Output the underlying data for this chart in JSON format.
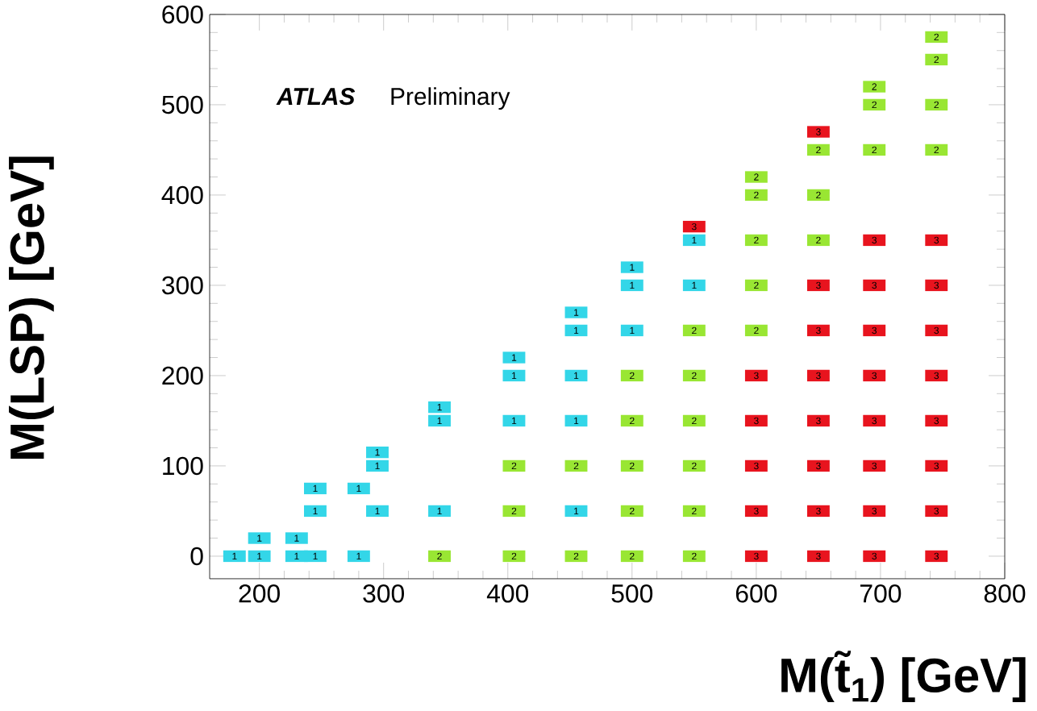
{
  "chart_data": {
    "type": "scatter",
    "xlabel": "M(t̃$_{1}$) [GeV]",
    "ylabel": "M(LSP) [GeV]",
    "annotations": [
      "ATLAS",
      "Preliminary"
    ],
    "xlim": [
      160,
      800
    ],
    "ylim": [
      -25,
      600
    ],
    "xticks": [
      200,
      300,
      400,
      500,
      600,
      700,
      800
    ],
    "yticks": [
      0,
      100,
      200,
      300,
      400,
      500,
      600
    ],
    "marker": "square",
    "grid": false,
    "legend": false,
    "series": [
      {
        "name": "1",
        "color": "#33d6e8",
        "x": [
          180,
          200,
          200,
          230,
          230,
          245,
          245,
          245,
          280,
          280,
          295,
          295,
          295,
          345,
          345,
          345,
          405,
          405,
          405,
          455,
          455,
          455,
          455,
          455,
          500,
          500,
          500,
          550,
          550
        ],
        "values": [
          0,
          0,
          20,
          0,
          20,
          0,
          50,
          75,
          0,
          75,
          50,
          100,
          115,
          50,
          150,
          165,
          150,
          200,
          220,
          50,
          150,
          200,
          250,
          270,
          250,
          300,
          320,
          300,
          350
        ]
      },
      {
        "name": "2",
        "color": "#99e633",
        "x": [
          345,
          405,
          405,
          405,
          455,
          455,
          500,
          500,
          500,
          500,
          500,
          550,
          550,
          550,
          550,
          550,
          550,
          600,
          600,
          600,
          600,
          600,
          650,
          650,
          650,
          695,
          695,
          695,
          745,
          745,
          745,
          745
        ],
        "values": [
          0,
          0,
          50,
          100,
          0,
          100,
          0,
          50,
          100,
          150,
          200,
          0,
          50,
          100,
          150,
          200,
          250,
          250,
          300,
          350,
          400,
          420,
          350,
          400,
          450,
          450,
          500,
          520,
          450,
          500,
          550,
          575
        ]
      },
      {
        "name": "3",
        "color": "#e8141e",
        "x": [
          550,
          600,
          600,
          600,
          600,
          600,
          650,
          650,
          650,
          650,
          650,
          650,
          650,
          650,
          695,
          695,
          695,
          695,
          695,
          695,
          695,
          695,
          745,
          745,
          745,
          745,
          745,
          745,
          745,
          745
        ],
        "values": [
          365,
          0,
          50,
          100,
          150,
          200,
          0,
          50,
          100,
          150,
          200,
          250,
          300,
          470,
          0,
          50,
          100,
          150,
          200,
          250,
          300,
          350,
          0,
          50,
          100,
          150,
          200,
          250,
          300,
          350
        ]
      }
    ]
  }
}
